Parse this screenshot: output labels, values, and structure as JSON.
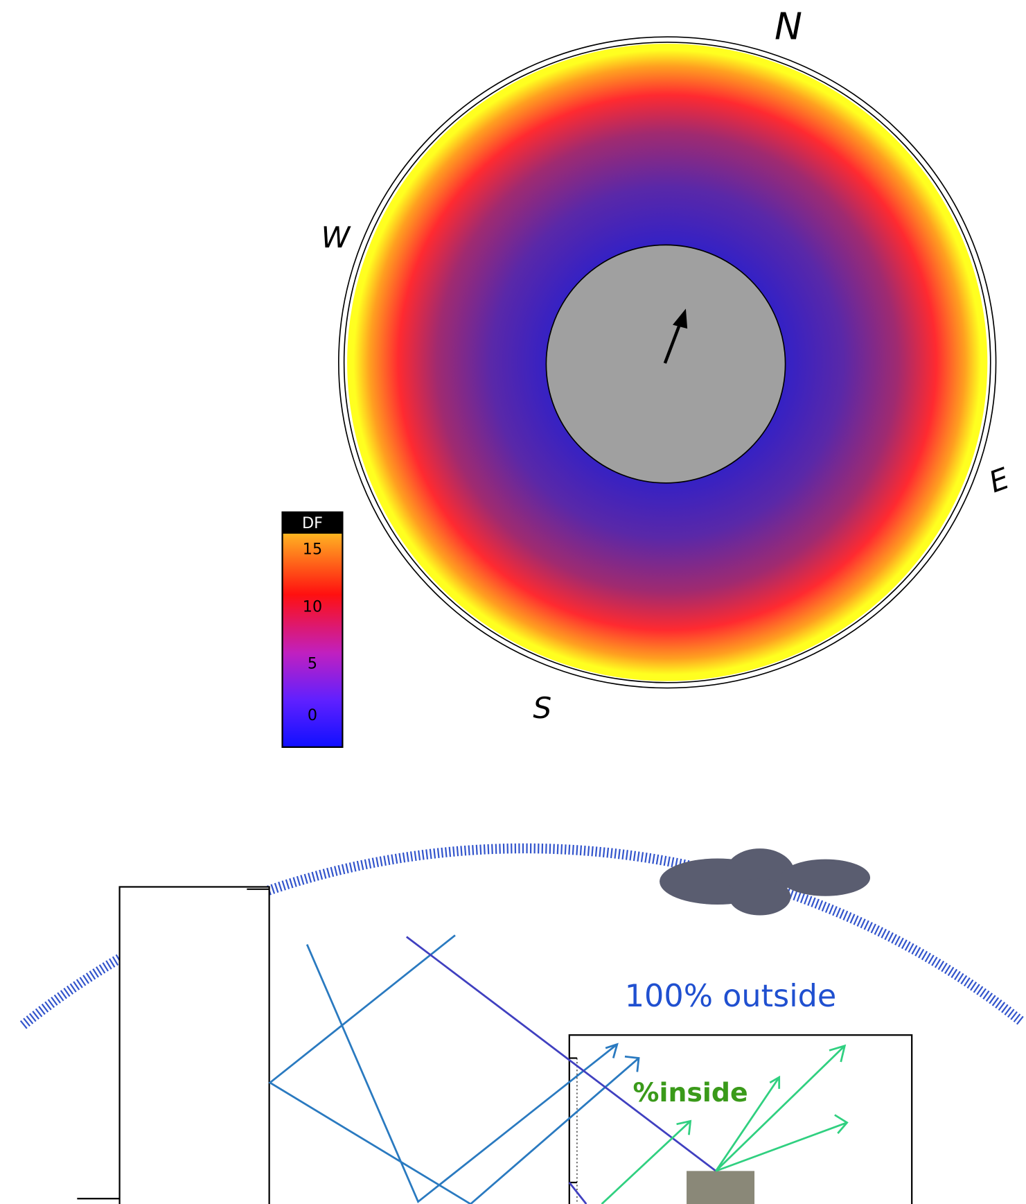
{
  "compass": {
    "north": "N",
    "west": "W",
    "east": "E",
    "south": "S"
  },
  "legend": {
    "title": "DF",
    "ticks": [
      15,
      10,
      5,
      0
    ]
  },
  "diagram": {
    "outside_label": "100% outside",
    "inside_label": "%inside"
  }
}
